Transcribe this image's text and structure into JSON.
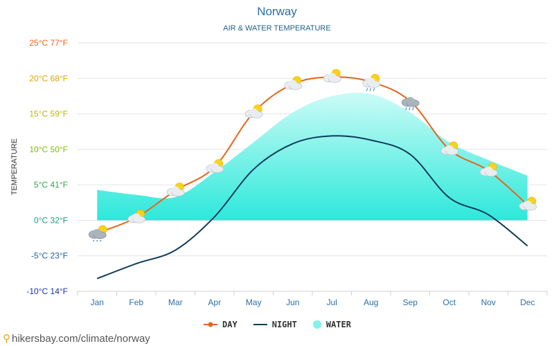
{
  "chart_data": {
    "type": "line",
    "title": "Norway",
    "subtitle": "AIR & WATER TEMPERATURE",
    "ylabel": "TEMPERATURE",
    "categories": [
      "Jan",
      "Feb",
      "Mar",
      "Apr",
      "May",
      "Jun",
      "Jul",
      "Aug",
      "Sep",
      "Oct",
      "Nov",
      "Dec"
    ],
    "ylim": [
      -10,
      25
    ],
    "yticks": [
      {
        "c": 25,
        "label": "25°C 77°F",
        "color": "#e8641a"
      },
      {
        "c": 20,
        "label": "20°C 68°F",
        "color": "#d9a400"
      },
      {
        "c": 15,
        "label": "15°C 59°F",
        "color": "#b8b800"
      },
      {
        "c": 10,
        "label": "10°C 50°F",
        "color": "#7cc000"
      },
      {
        "c": 5,
        "label": "5°C 41°F",
        "color": "#2aa84a"
      },
      {
        "c": 0,
        "label": "0°C 32°F",
        "color": "#1a9a8a"
      },
      {
        "c": -5,
        "label": "-5°C 23°F",
        "color": "#1a5fa8"
      },
      {
        "c": -10,
        "label": "-10°C 14°F",
        "color": "#1a2fa8"
      }
    ],
    "series": [
      {
        "name": "DAY",
        "color": "#e8641a",
        "values": [
          -1.8,
          0.4,
          4.2,
          7.5,
          15.2,
          19.2,
          20.2,
          19.5,
          16.8,
          10,
          7,
          2.2
        ]
      },
      {
        "name": "NIGHT",
        "color": "#0d3b5a",
        "values": [
          -8.2,
          -6.1,
          -4.2,
          0.5,
          7.2,
          10.8,
          11.9,
          11.3,
          9.3,
          3.2,
          0.8,
          -3.6
        ]
      },
      {
        "name": "WATER",
        "color": "#7ff3ea",
        "values": [
          4.3,
          3.6,
          3.3,
          6.8,
          11,
          15.2,
          17.5,
          17.8,
          15.2,
          11,
          8.5,
          6.3
        ]
      }
    ],
    "weather_icons": [
      "snow",
      "partly-cloudy",
      "sunny-cloud",
      "sunny-cloud",
      "sunny-cloud",
      "sunny-cloud",
      "sunny-cloud",
      "rain-sun",
      "rain",
      "sunny-cloud",
      "sunny-cloud",
      "sunny-cloud"
    ],
    "grid": true,
    "legend_position": "bottom"
  },
  "footer": {
    "text": "hikersbay.com/climate/norway",
    "icon": "location-pin-icon"
  }
}
